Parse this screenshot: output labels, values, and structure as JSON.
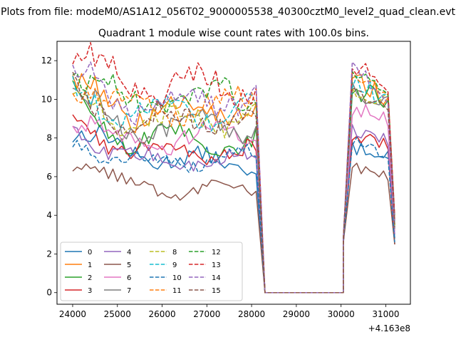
{
  "suptitle": "Plots from file: modeM0/AS1A12_056T02_9000005538_40300cztM0_level2_quad_clean.evt",
  "chart_data": {
    "type": "line",
    "title": "Quadrant 1 module wise count rates with 100.0s bins.",
    "xlabel": "",
    "ylabel": "",
    "x_offset_label": "+4.163e8",
    "xlim": [
      23650,
      31550
    ],
    "ylim": [
      -0.6,
      13.0
    ],
    "xticks": [
      24000,
      25000,
      26000,
      27000,
      28000,
      29000,
      30000,
      31000
    ],
    "yticks": [
      0,
      2,
      4,
      6,
      8,
      10,
      12
    ],
    "grid": false,
    "legend": "lower-left",
    "legend_columns": 4,
    "flat": {
      "start": 28300,
      "end": 30050,
      "value": 0
    },
    "segments": [
      {
        "start": 24000,
        "end": 28100,
        "drop": 28300
      },
      {
        "rise": 30050,
        "start": 30250,
        "end": 31100,
        "tail": 31200
      }
    ],
    "series": [
      {
        "name": "0",
        "color": "#1f77b4",
        "dash": "solid",
        "seg1": [
          8.3,
          7.3,
          6.4
        ],
        "seg2": [
          7.5,
          7.2
        ],
        "tail": 2.8
      },
      {
        "name": "1",
        "color": "#ff7f0e",
        "dash": "solid",
        "seg1": [
          10.8,
          9.3,
          9.6
        ],
        "seg2": [
          11.0,
          10.0
        ],
        "tail": 3.8
      },
      {
        "name": "2",
        "color": "#2ca02c",
        "dash": "solid",
        "seg1": [
          9.8,
          8.0,
          7.8
        ],
        "seg2": [
          10.5,
          10.0
        ],
        "tail": 3.5
      },
      {
        "name": "3",
        "color": "#d62728",
        "dash": "solid",
        "seg1": [
          9.0,
          7.4,
          7.2
        ],
        "seg2": [
          8.3,
          7.5
        ],
        "tail": 2.5
      },
      {
        "name": "4",
        "color": "#9467bd",
        "dash": "solid",
        "seg1": [
          8.5,
          6.8,
          6.9
        ],
        "seg2": [
          8.5,
          7.8
        ],
        "tail": 3.0
      },
      {
        "name": "5",
        "color": "#8c564b",
        "dash": "solid",
        "seg1": [
          7.0,
          5.4,
          5.4
        ],
        "seg2": [
          6.5,
          6.0
        ],
        "tail": 2.5
      },
      {
        "name": "6",
        "color": "#e377c2",
        "dash": "solid",
        "seg1": [
          9.0,
          7.8,
          8.2
        ],
        "seg2": [
          9.5,
          9.0
        ],
        "tail": 3.2
      },
      {
        "name": "7",
        "color": "#7f7f7f",
        "dash": "solid",
        "seg1": [
          10.0,
          8.6,
          8.6
        ],
        "seg2": [
          10.5,
          9.7
        ],
        "tail": 3.3
      },
      {
        "name": "8",
        "color": "#bcbd22",
        "dash": "dashed",
        "seg1": [
          10.0,
          8.9,
          9.1
        ],
        "seg2": [
          10.5,
          9.9
        ],
        "tail": 3.5
      },
      {
        "name": "9",
        "color": "#17becf",
        "dash": "dashed",
        "seg1": [
          10.5,
          9.2,
          9.6
        ],
        "seg2": [
          10.8,
          10.0
        ],
        "tail": 3.6
      },
      {
        "name": "10",
        "color": "#1f77b4",
        "dash": "dashed",
        "seg1": [
          8.0,
          6.8,
          6.9
        ],
        "seg2": [
          8.0,
          6.8
        ],
        "tail": 2.6
      },
      {
        "name": "11",
        "color": "#ff7f0e",
        "dash": "dashed",
        "seg1": [
          11.0,
          9.4,
          9.8
        ],
        "seg2": [
          11.2,
          10.2
        ],
        "tail": 3.8
      },
      {
        "name": "12",
        "color": "#2ca02c",
        "dash": "dashed",
        "seg1": [
          11.5,
          9.8,
          10.2
        ],
        "seg2": [
          11.5,
          10.3
        ],
        "tail": 3.9
      },
      {
        "name": "13",
        "color": "#d62728",
        "dash": "dashed",
        "seg1": [
          12.4,
          10.7,
          10.7
        ],
        "seg2": [
          12.0,
          10.5
        ],
        "tail": 4.0
      },
      {
        "name": "14",
        "color": "#9467bd",
        "dash": "dashed",
        "seg1": [
          11.2,
          9.8,
          10.1
        ],
        "seg2": [
          11.5,
          10.0
        ],
        "tail": 3.7
      },
      {
        "name": "15",
        "color": "#8c564b",
        "dash": "dashed",
        "seg1": [
          10.3,
          9.0,
          9.0
        ],
        "seg2": [
          10.5,
          9.8
        ],
        "tail": 3.4
      }
    ]
  }
}
